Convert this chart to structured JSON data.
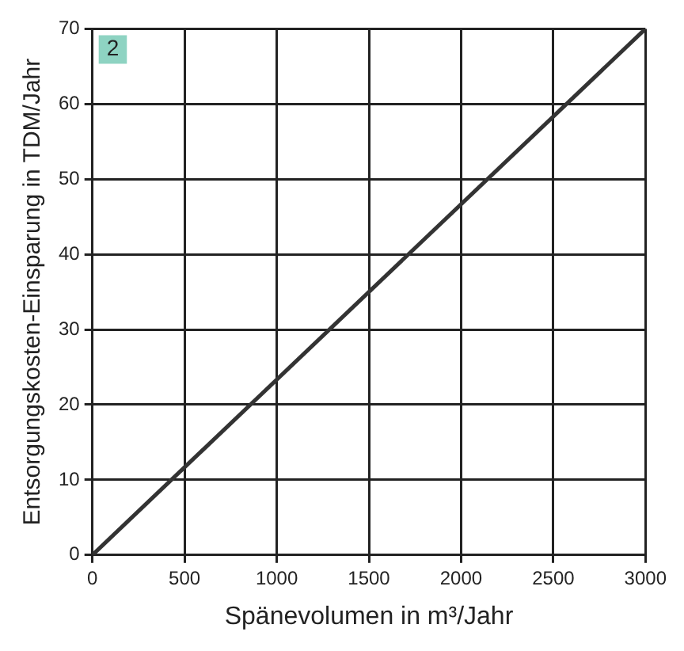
{
  "chart_data": {
    "type": "line",
    "xlabel": "Spänevolumen in m³/Jahr",
    "ylabel": "Entsorgungskosten-Einsparung in TDM/Jahr",
    "annotations": [
      "2"
    ],
    "x": [
      0,
      3000
    ],
    "series": [
      {
        "color": "#333333",
        "values": [
          0,
          70
        ]
      }
    ],
    "xlim": [
      0,
      3000
    ],
    "xticks": [
      0,
      500,
      1000,
      1500,
      2000,
      2500,
      3000
    ],
    "ylim": [
      0,
      70
    ],
    "yticks": [
      0,
      10,
      20,
      30,
      40,
      50,
      60,
      70
    ],
    "grid": true,
    "legend": false,
    "marker": "none",
    "line_style": "solid"
  }
}
